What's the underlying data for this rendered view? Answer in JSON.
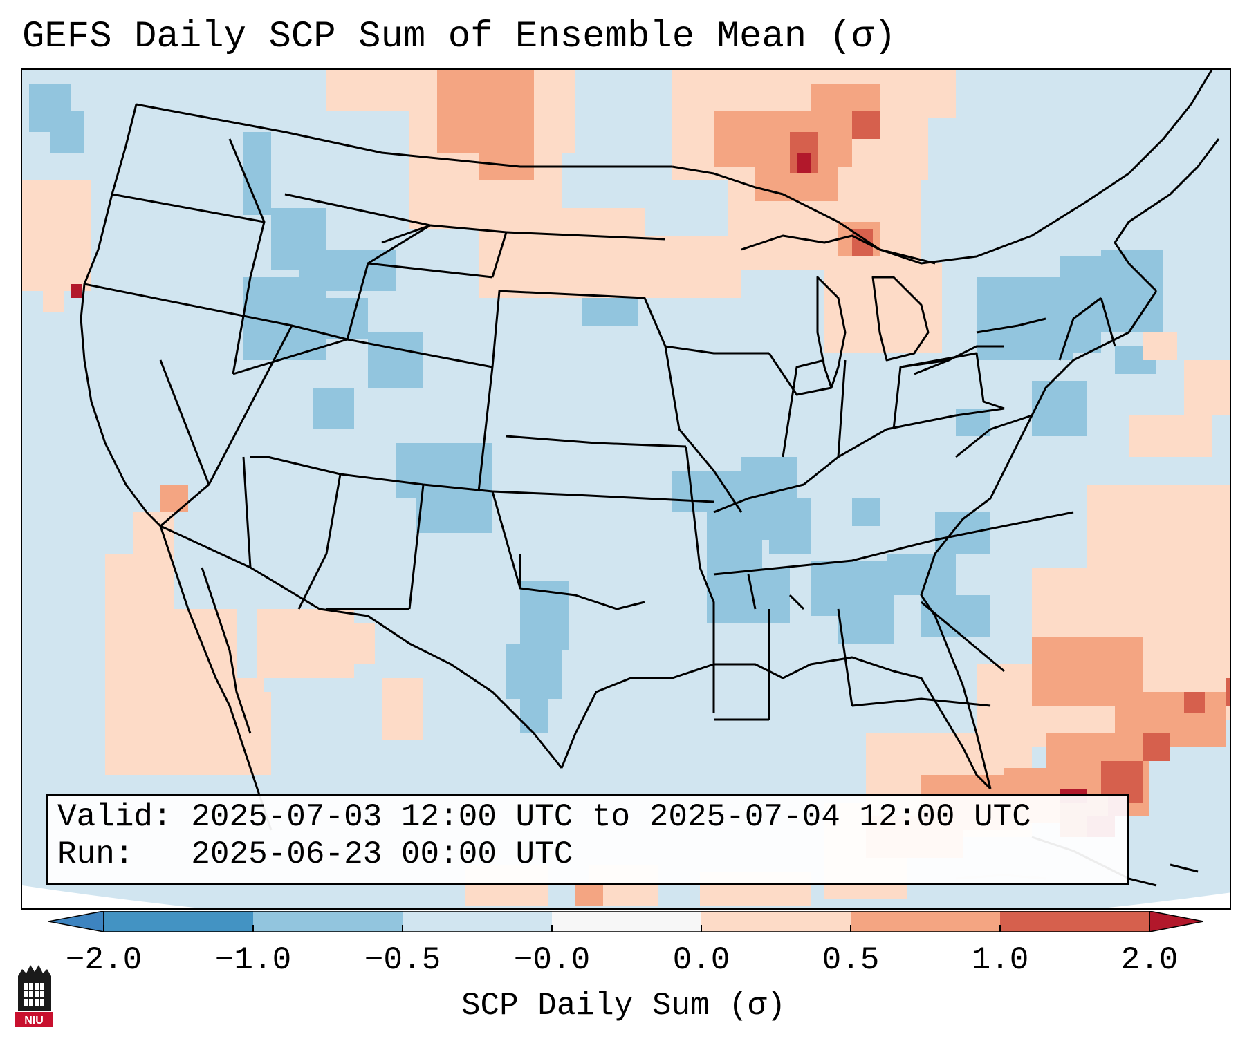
{
  "title": "GEFS Daily SCP Sum of Ensemble Mean (σ)",
  "info": {
    "valid_label": "Valid:",
    "valid_value": "2025-07-03 12:00 UTC to 2025-07-04 12:00 UTC",
    "run_label": "Run:",
    "run_value": "2025-06-23 00:00 UTC"
  },
  "colorbar": {
    "label": "SCP Daily Sum (σ)",
    "ticks": [
      "−2.0",
      "−1.0",
      "−0.5",
      "−0.0",
      "0.0",
      "0.5",
      "1.0",
      "2.0"
    ],
    "colors": {
      "under": "#3d84c0",
      "bin1": "#4393c3",
      "bin2": "#92c5de",
      "bin3": "#d1e5f0",
      "bin4": "#f7f7f7",
      "bin5": "#fddbc7",
      "bin6": "#f4a582",
      "bin7": "#d6604d",
      "over": "#b2182b"
    }
  },
  "map": {
    "background_color": "#d1e5f0",
    "outside_color": "#ffffff",
    "border_color": "#000000"
  },
  "logo": {
    "text": "NIU",
    "icon": "niu-building-icon"
  }
}
